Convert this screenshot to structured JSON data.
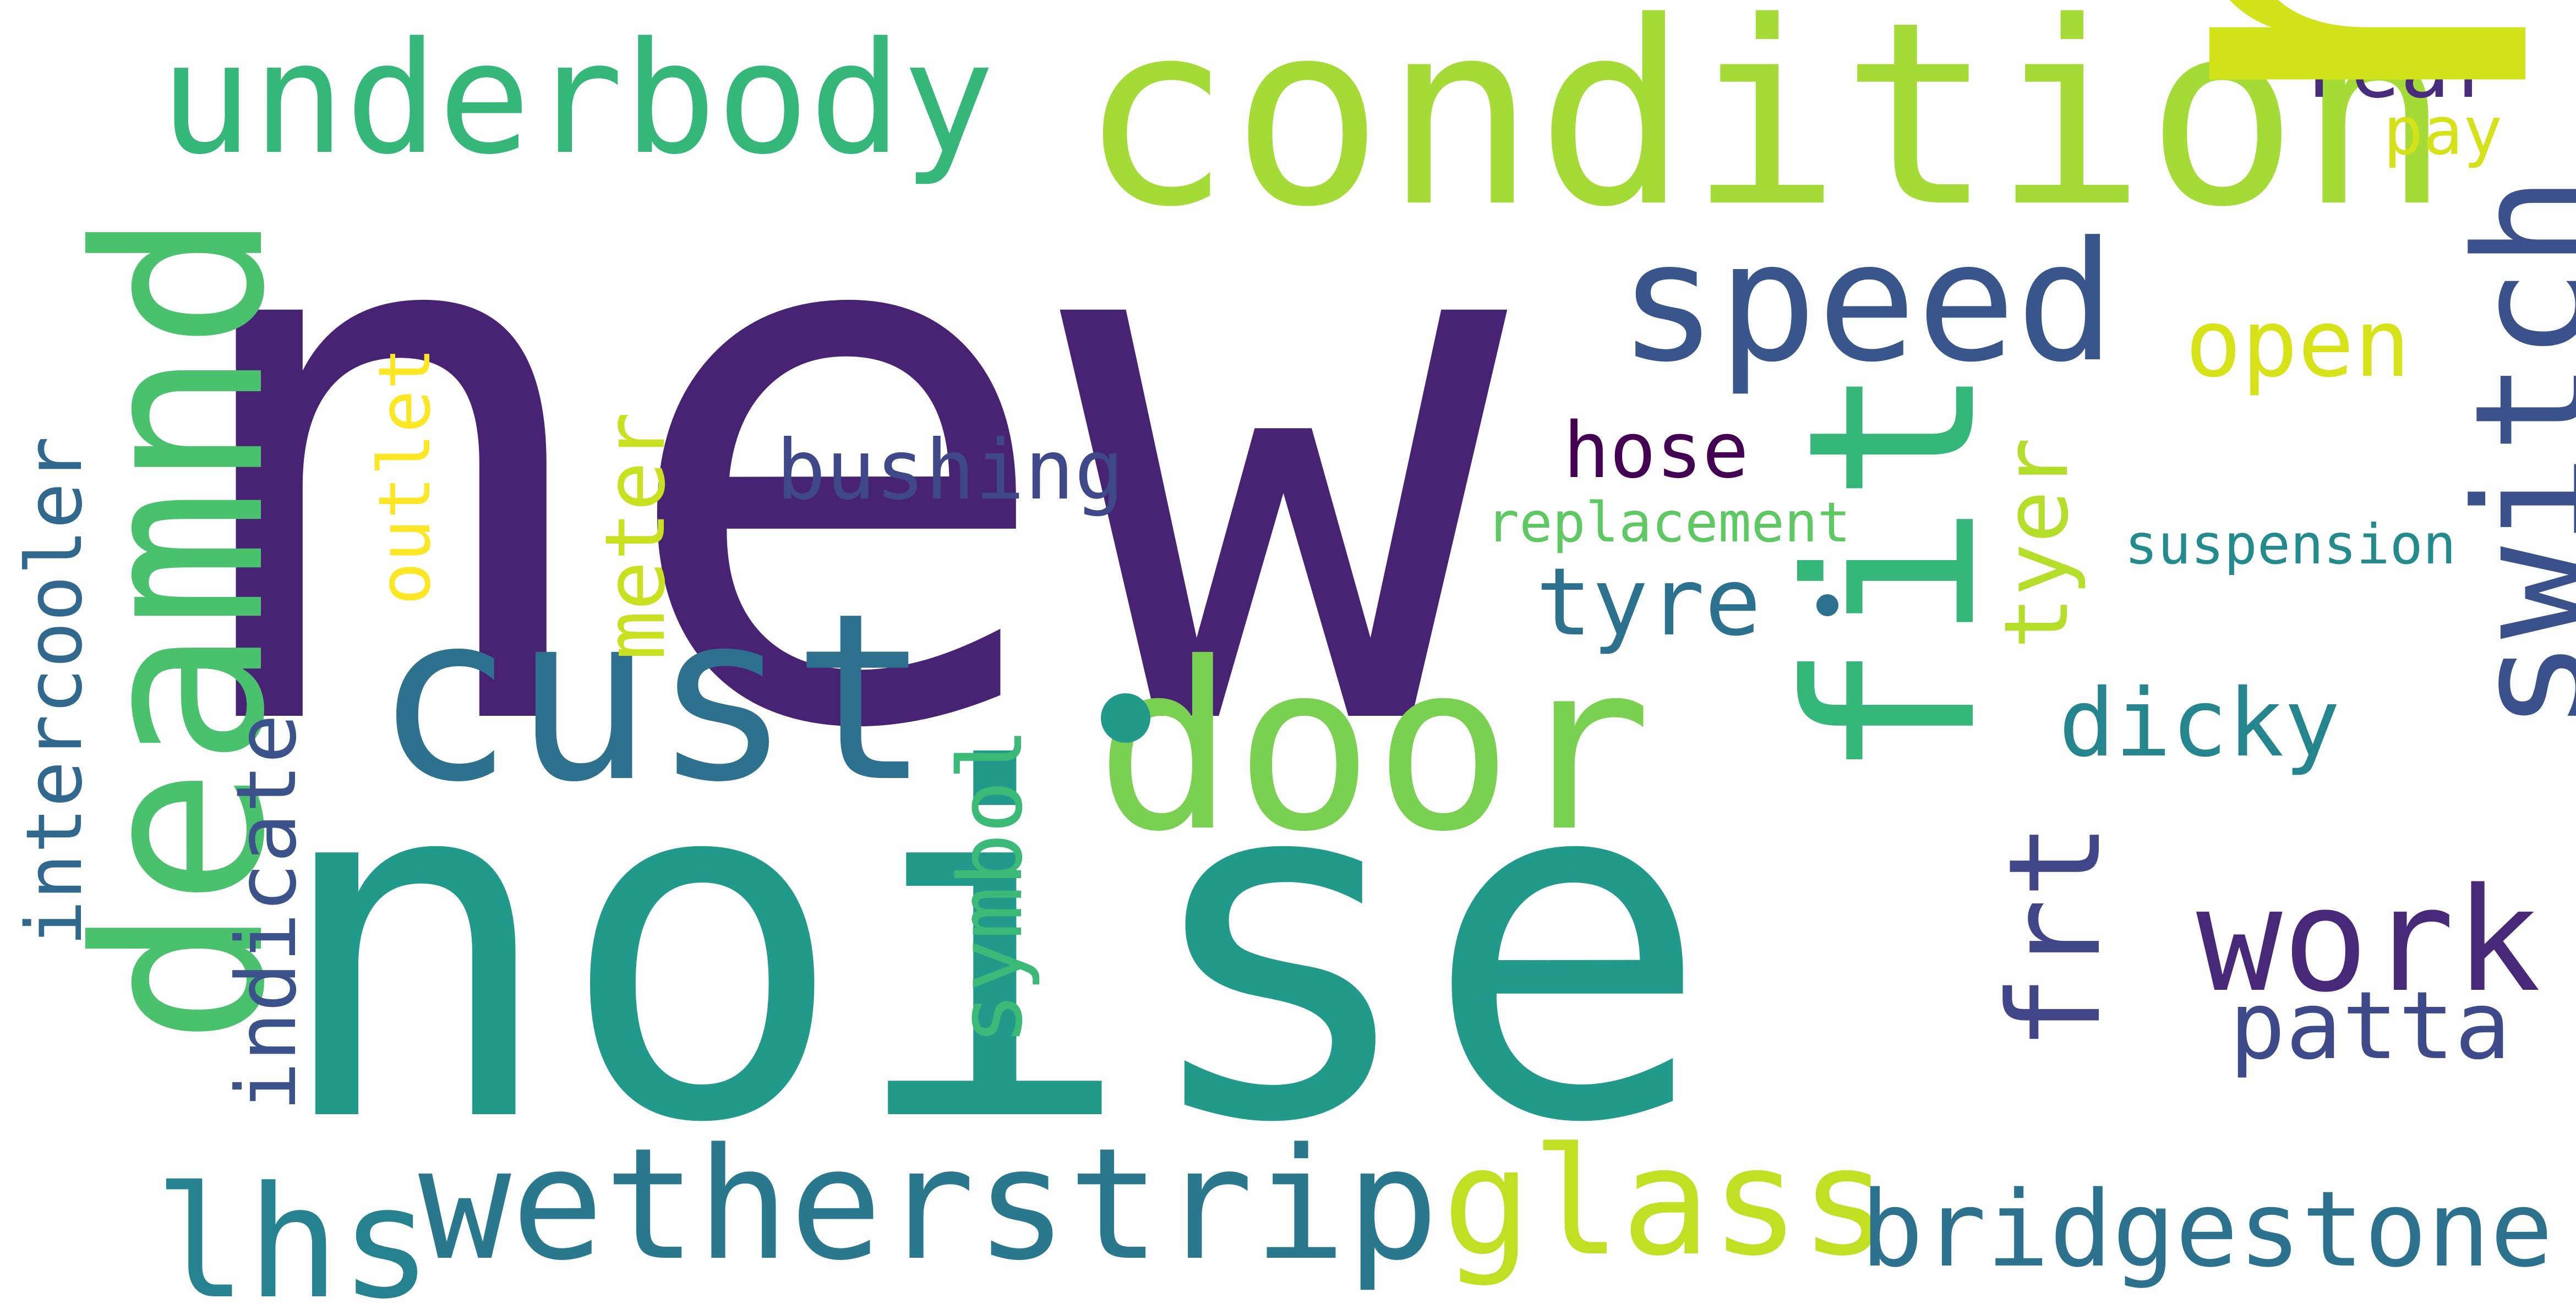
{
  "words": {
    "new": {
      "text": "new",
      "color": "#482374"
    },
    "noise": {
      "text": "noise",
      "color": "#21998b"
    },
    "run": {
      "text": "run",
      "color": "#d2e21b"
    },
    "condition": {
      "text": "condition",
      "color": "#a5db36"
    },
    "underbody": {
      "text": "underbody",
      "color": "#35b779"
    },
    "deamnd": {
      "text": "deamnd",
      "color": "#4ac16d"
    },
    "cust": {
      "text": "cust",
      "color": "#2d718e"
    },
    "door": {
      "text": "door",
      "color": "#7ad151"
    },
    "fit": {
      "text": "fit",
      "color": "#35b779"
    },
    "speed": {
      "text": "speed",
      "color": "#39568c"
    },
    "switch": {
      "text": "switch",
      "color": "#3b518b"
    },
    "work": {
      "text": "work",
      "color": "#482878"
    },
    "glass": {
      "text": "glass",
      "color": "#c2df23"
    },
    "wetherstrip": {
      "text": "wetherstrip",
      "color": "#2a788e"
    },
    "lhs": {
      "text": "lhs",
      "color": "#26828e"
    },
    "bridgestone": {
      "text": "bridgestone",
      "color": "#2c728e"
    },
    "frt": {
      "text": "frt",
      "color": "#404688"
    },
    "patta": {
      "text": "patta",
      "color": "#3e4a89"
    },
    "dicky": {
      "text": "dicky",
      "color": "#25858e"
    },
    "tyre": {
      "text": "tyre",
      "color": "#2c728e"
    },
    "tyer": {
      "text": "tyer",
      "color": "#b5de2b"
    },
    "open": {
      "text": "open",
      "color": "#d8e219"
    },
    "rear": {
      "text": "rear",
      "color": "#472d7b"
    },
    "pay": {
      "text": "pay",
      "color": "#d5e21a"
    },
    "hose": {
      "text": "hose",
      "color": "#440154"
    },
    "replacement": {
      "text": "replacement",
      "color": "#5ec962"
    },
    "suspension": {
      "text": "suspension",
      "color": "#238a8d"
    },
    "bushing": {
      "text": "bushing",
      "color": "#3f4889"
    },
    "meter": {
      "text": "meter",
      "color": "#c8e020"
    },
    "outlet": {
      "text": "outlet",
      "color": "#fde725"
    },
    "symbol": {
      "text": "symbol",
      "color": "#3aba76"
    },
    "indicate": {
      "text": "indicate",
      "color": "#3b528b"
    },
    "intercooler": {
      "text": "intercooler",
      "color": "#31688e"
    }
  },
  "dots": {
    "dot1": {
      "color": "#21998b"
    },
    "dot2": {
      "color": "#2c728e"
    }
  }
}
